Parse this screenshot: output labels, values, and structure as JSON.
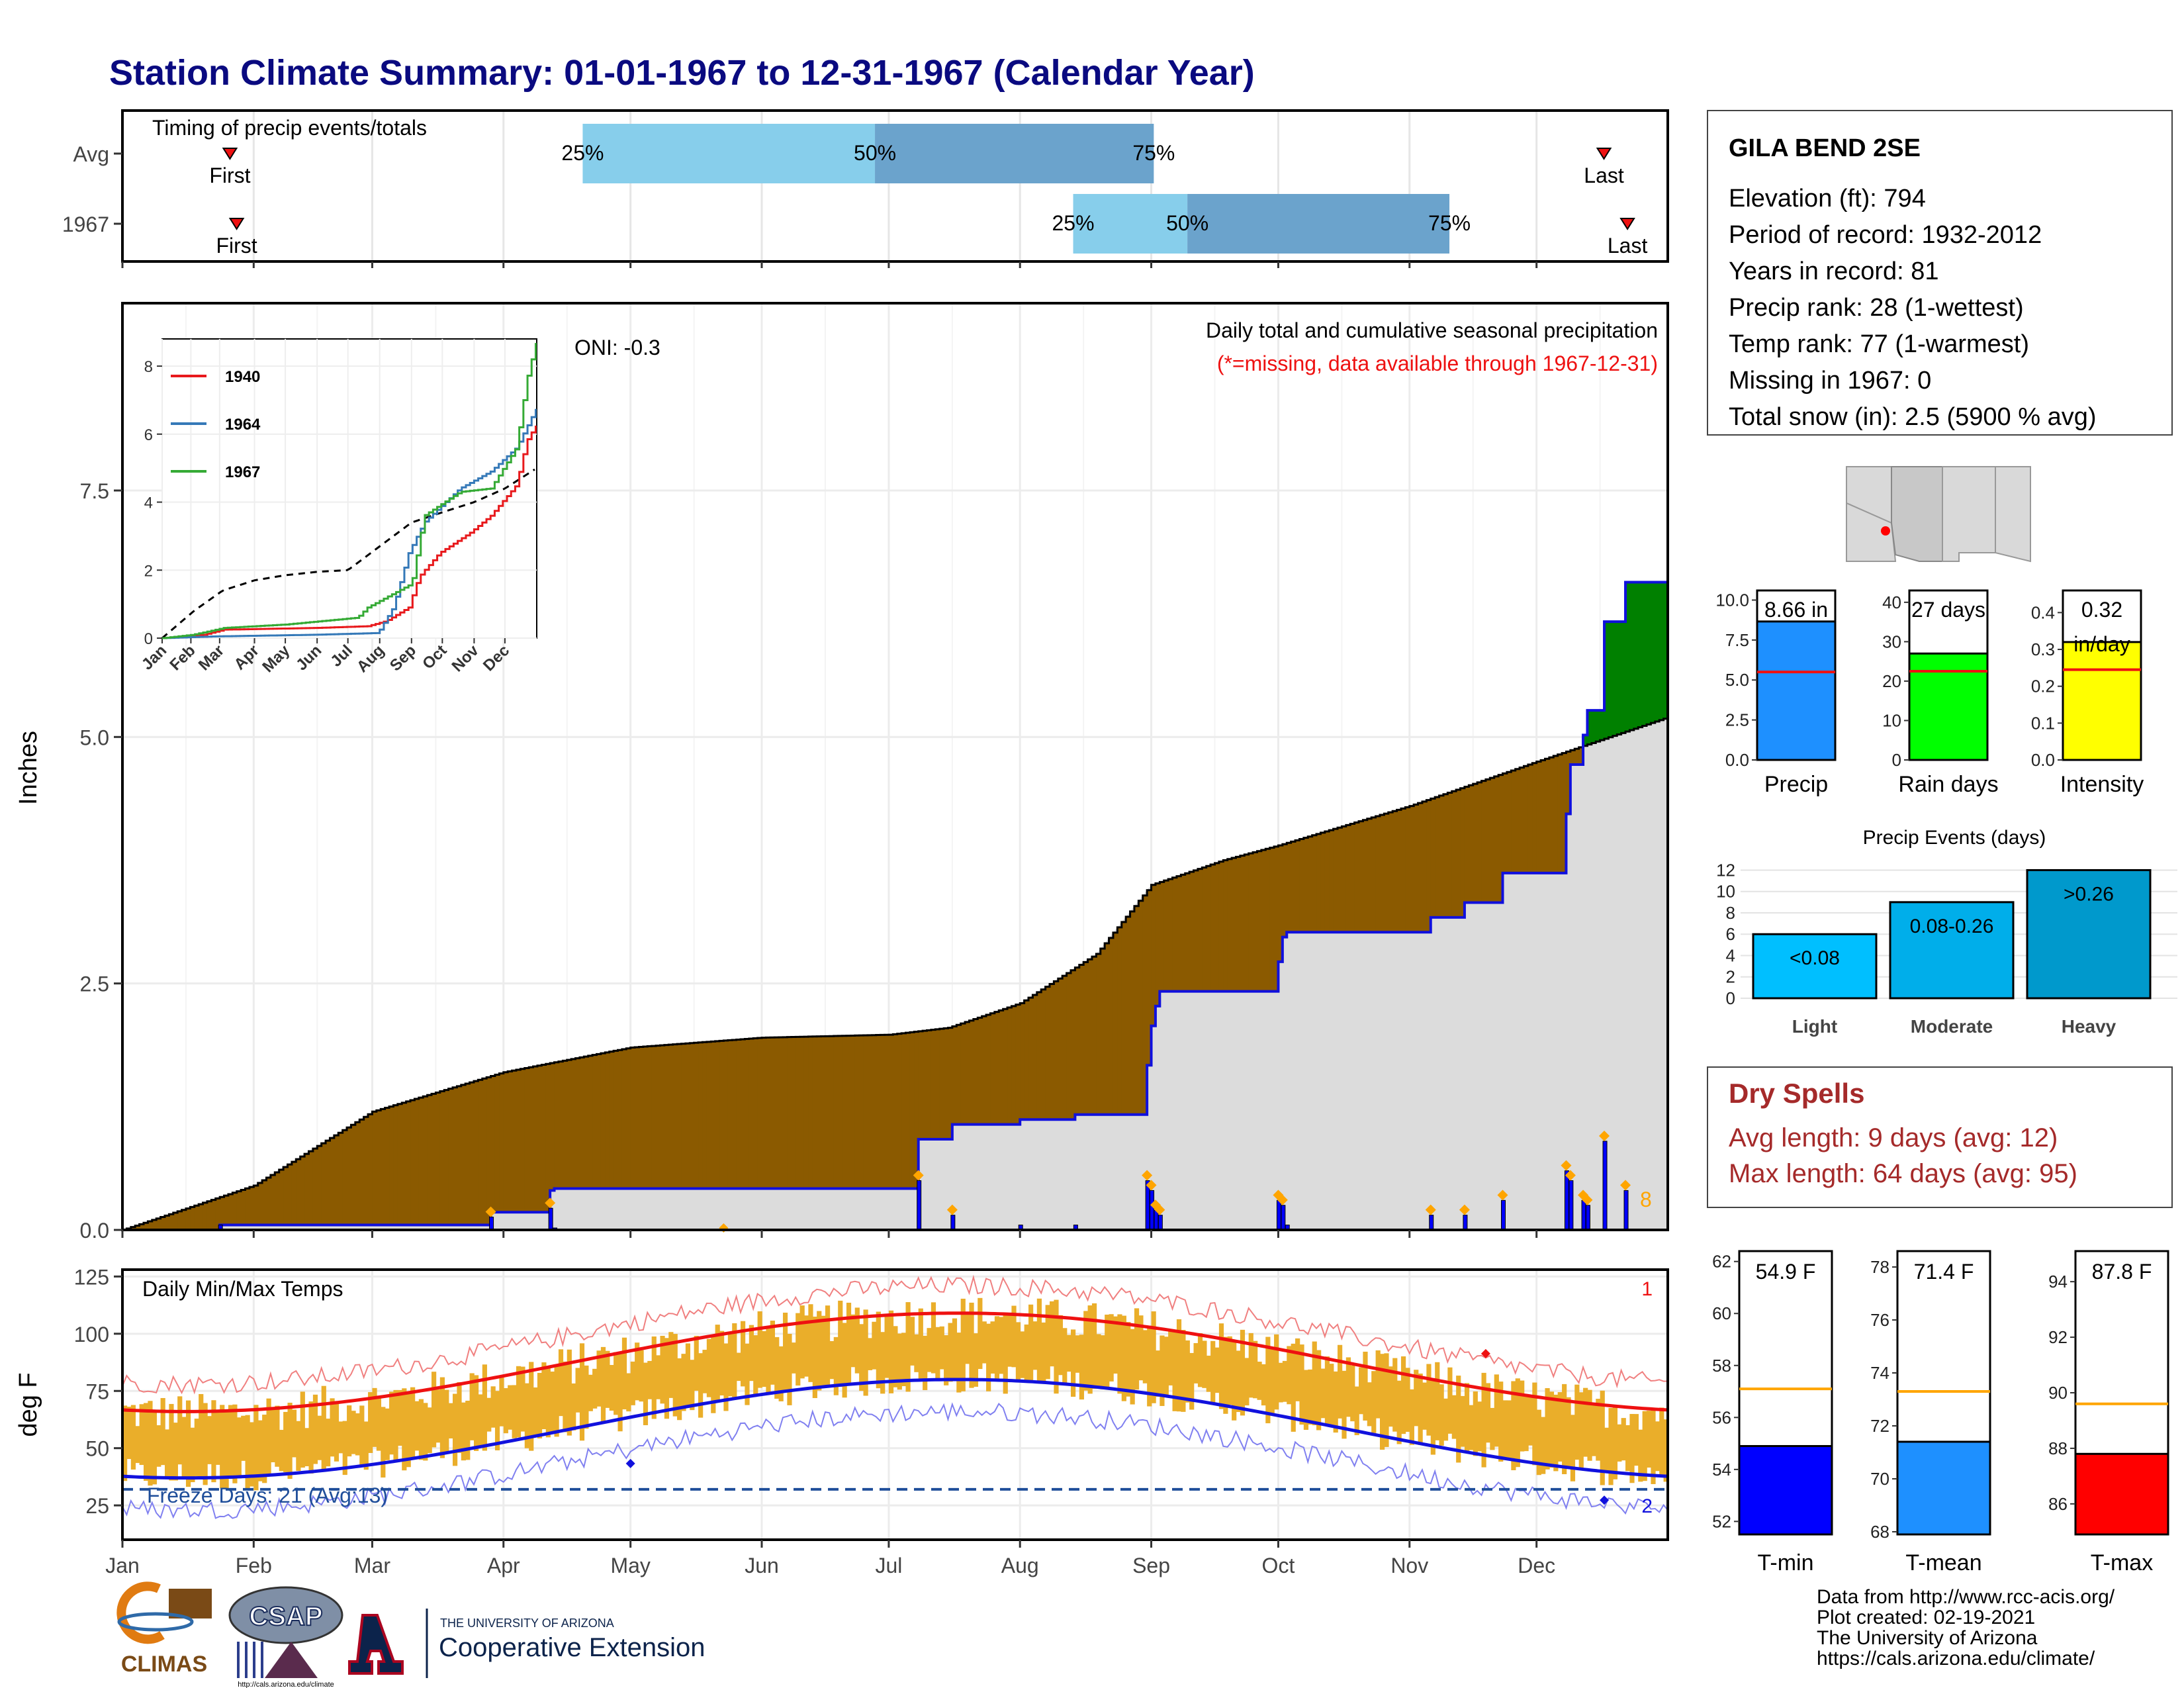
{
  "page_title": "Station Climate Summary: 01-01-1967 to 12-31-1967 (Calendar Year)",
  "timing_panel": {
    "title": "Timing of precip events/totals",
    "rows": [
      {
        "label": "Avg",
        "first_day": 137,
        "p25_day": 242,
        "p50_day": 329,
        "p75_day": 412,
        "last_day": 546,
        "labels": {
          "first": "First",
          "p25": "25%",
          "p50": "50%",
          "p75": "75%",
          "last": "Last"
        }
      },
      {
        "label": "1967",
        "first_day": 139,
        "p25_day": 388,
        "p50_day": 422,
        "p75_day": 500,
        "last_day": 553,
        "labels": {
          "first": "First",
          "p25": "25%",
          "p50": "50%",
          "p75": "75%",
          "last": "Last"
        }
      }
    ],
    "colors": {
      "light": "#87ceeb",
      "dark": "#6ba3cc",
      "marker": "#ee1111"
    }
  },
  "station_box": {
    "name": "GILA BEND 2SE",
    "lines": [
      "Elevation (ft): 794",
      "Period of record: 1932-2012",
      "Years in record: 81",
      "Precip rank: 28 (1-wettest)",
      "Temp rank: 77 (1-warmest)",
      "Missing in 1967: 0",
      "Total snow (in): 2.5 (5900 % avg)"
    ]
  },
  "main_chart": {
    "ylabel": "Inches",
    "title_line1": "Daily total and cumulative seasonal precipitation",
    "title_line2": "(*=missing, data available through 1967-12-31)",
    "oni_text": "ONI: -0.3",
    "count_label": "8",
    "yticks": [
      "0.0",
      "2.5",
      "5.0",
      "7.5"
    ],
    "ylim": [
      0,
      9.4
    ],
    "colors": {
      "deficit": "#8b5a00",
      "surplus": "#008000",
      "normal_fill": "#dcdcdc",
      "obs_line": "#1010dd",
      "bar": "#0000ff",
      "marker": "#ffa500"
    }
  },
  "inset_chart": {
    "yticks": [
      "0",
      "2",
      "4",
      "6",
      "8"
    ],
    "xticks": [
      "Jan",
      "Feb",
      "Mar",
      "Apr",
      "May",
      "Jun",
      "Jul",
      "Aug",
      "Sep",
      "Oct",
      "Nov",
      "Dec"
    ],
    "legend": [
      {
        "name": "1940",
        "color": "#e8191c"
      },
      {
        "name": "1964",
        "color": "#3579b8"
      },
      {
        "name": "1967",
        "color": "#35aa35"
      }
    ]
  },
  "temp_chart": {
    "ylabel": "deg F",
    "title": "Daily Min/Max Temps",
    "freeze_text": "Freeze Days: 21 (Avg:13)",
    "top_count": "1",
    "bottom_count": "2",
    "yticks": [
      "25",
      "50",
      "75",
      "100",
      "125"
    ],
    "ylim": [
      10,
      128
    ],
    "freeze_line": 32,
    "colors": {
      "bars": "#eaae2a",
      "max_avg": "#ee1111",
      "min_avg": "#1111dd",
      "record_max": "#f08080",
      "record_min": "#8080f0",
      "freeze": "#1f4e9a"
    }
  },
  "x_axis": {
    "months": [
      "Jan",
      "Feb",
      "Mar",
      "Apr",
      "May",
      "Jun",
      "Jul",
      "Aug",
      "Sep",
      "Oct",
      "Nov",
      "Dec"
    ]
  },
  "mini_bars": [
    {
      "label": "Precip",
      "value_text": "8.66 in",
      "value": 8.66,
      "avg": 5.5,
      "yticks": [
        "0.0",
        "2.5",
        "5.0",
        "7.5",
        "10.0"
      ],
      "ymax": 10.6,
      "color": "#1e90ff"
    },
    {
      "label": "Rain days",
      "value_text": "27 days",
      "value": 27,
      "avg": 22.5,
      "yticks": [
        "0",
        "10",
        "20",
        "30",
        "40"
      ],
      "ymax": 43,
      "color": "#00ff00"
    },
    {
      "label": "Intensity",
      "value_text": "0.32\nin/day",
      "value": 0.32,
      "avg": 0.245,
      "yticks": [
        "0.0",
        "0.1",
        "0.2",
        "0.3",
        "0.4"
      ],
      "ymax": 0.46,
      "color": "#ffff00"
    }
  ],
  "precip_events": {
    "title": "Precip Events (days)",
    "yticks": [
      "0",
      "2",
      "4",
      "6",
      "8",
      "10",
      "12"
    ],
    "bars": [
      {
        "category": "Light",
        "label": "<0.08",
        "value": 6,
        "color": "#00bfff"
      },
      {
        "category": "Moderate",
        "label": "0.08-0.26",
        "value": 9,
        "color": "#00aeea"
      },
      {
        "category": "Heavy",
        "label": ">0.26",
        "value": 12,
        "color": "#0099cc"
      }
    ]
  },
  "dry_spells": {
    "title": "Dry Spells",
    "avg_line": "Avg length: 9 days (avg: 12)",
    "max_line": "Max length: 64 days (avg: 95)"
  },
  "temp_bars": [
    {
      "label": "T-min",
      "value_text": "54.9 F",
      "value": 54.9,
      "avg": 57.1,
      "yticks": [
        "52",
        "54",
        "56",
        "58",
        "60",
        "62"
      ],
      "ymin": 51.5,
      "ymax": 62.4,
      "color": "#0000ff"
    },
    {
      "label": "T-mean",
      "value_text": "71.4 F",
      "value": 71.4,
      "avg": 73.3,
      "yticks": [
        "68",
        "70",
        "72",
        "74",
        "76",
        "78"
      ],
      "ymin": 67.9,
      "ymax": 78.6,
      "color": "#1e90ff"
    },
    {
      "label": "T-max",
      "value_text": "87.8 F",
      "value": 87.8,
      "avg": 89.6,
      "yticks": [
        "86",
        "88",
        "90",
        "92",
        "94"
      ],
      "ymin": 84.9,
      "ymax": 95.1,
      "color": "#ff0000"
    }
  ],
  "footer": {
    "lines": [
      "Data from http://www.rcc-acis.org/",
      "Plot created: 02-19-2021",
      "The University of Arizona",
      "https://cals.arizona.edu/climate/"
    ],
    "logos": {
      "climas": "CLIMAS",
      "csap": "CSAP",
      "csap_url": "http://cals.arizona.edu/climate",
      "ua_small": "THE UNIVERSITY OF ARIZONA",
      "ua_big": "Cooperative Extension"
    }
  }
}
